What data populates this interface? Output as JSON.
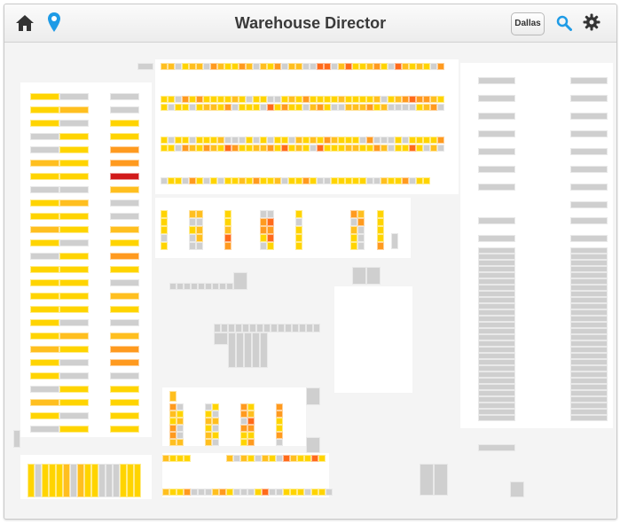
{
  "header": {
    "title": "Warehouse Director",
    "location_button": "Dallas",
    "icons": {
      "home": "home-icon",
      "location": "location-pin-icon",
      "search": "search-icon",
      "settings": "gear-icon"
    }
  },
  "colors": {
    "empty": "#cfcfcf",
    "low": "#ffd400",
    "medium": "#ffbf1f",
    "high": "#ff9a1f",
    "very_high": "#ff6a1a",
    "critical": "#d11a1a",
    "accent": "#1e9be6"
  },
  "heat_levels": [
    "empty",
    "low",
    "medium",
    "high",
    "very_high",
    "critical"
  ]
}
